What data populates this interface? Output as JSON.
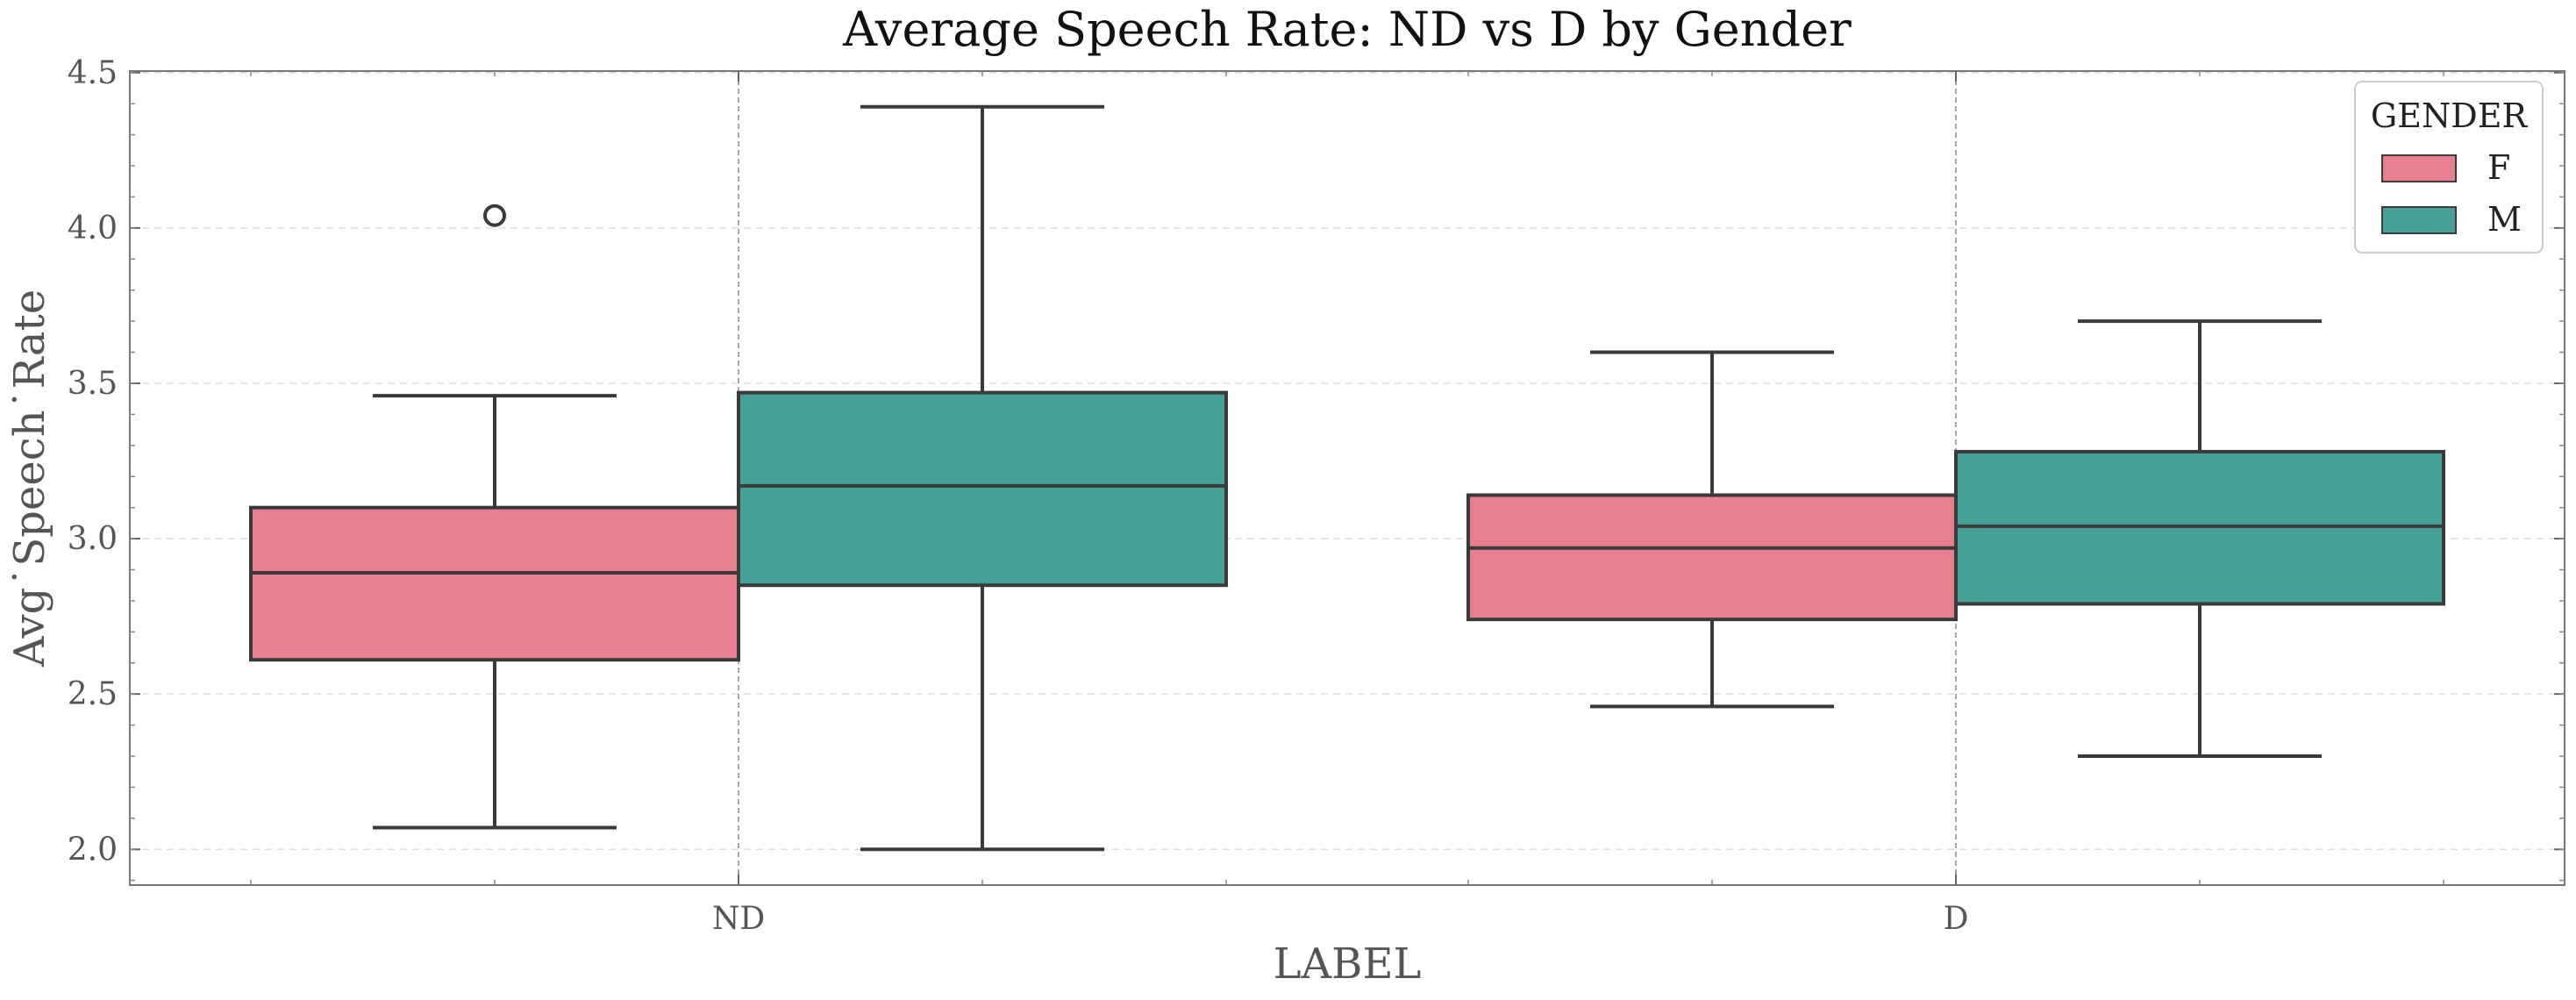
{
  "chart_data": {
    "type": "box",
    "title": "Average Speech Rate: ND vs D by Gender",
    "xlabel": "LABEL",
    "ylabel": "Avg˙Speech˙Rate",
    "ylim": [
      1.885,
      4.505
    ],
    "yticks": [
      "2.0",
      "2.5",
      "3.0",
      "3.5",
      "4.0",
      "4.5"
    ],
    "categories": [
      "ND",
      "D"
    ],
    "grid": "horizontal dashed",
    "legend": {
      "title": "GENDER",
      "position": "top-right"
    },
    "series": [
      {
        "name": "F",
        "color": "#e77f91",
        "boxes": [
          {
            "category": "ND",
            "whisker_low": 2.07,
            "q1": 2.61,
            "median": 2.89,
            "q3": 3.1,
            "whisker_high": 3.46,
            "outliers": [
              4.04
            ]
          },
          {
            "category": "D",
            "whisker_low": 2.46,
            "q1": 2.74,
            "median": 2.97,
            "q3": 3.14,
            "whisker_high": 3.6,
            "outliers": []
          }
        ]
      },
      {
        "name": "M",
        "color": "#45a097",
        "boxes": [
          {
            "category": "ND",
            "whisker_low": 2.0,
            "q1": 2.85,
            "median": 3.17,
            "q3": 3.47,
            "whisker_high": 4.39,
            "outliers": []
          },
          {
            "category": "D",
            "whisker_low": 2.3,
            "q1": 2.79,
            "median": 3.04,
            "q3": 3.28,
            "whisker_high": 3.7,
            "outliers": []
          }
        ]
      }
    ]
  }
}
